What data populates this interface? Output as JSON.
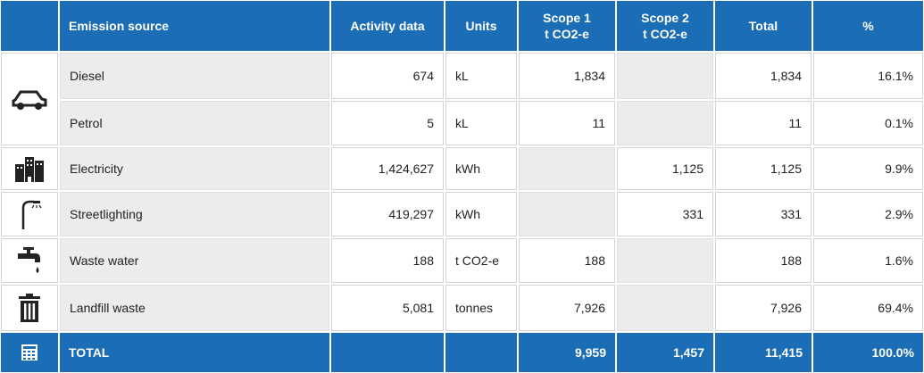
{
  "table": {
    "header": [
      null,
      [
        "Emission source"
      ],
      [
        "Activity data"
      ],
      [
        "Units"
      ],
      [
        "Scope 1",
        "t CO2-e"
      ],
      [
        "Scope 2",
        "t CO2-e"
      ],
      [
        "Total"
      ],
      [
        "%"
      ]
    ],
    "rows": [
      [
        "Diesel",
        "674",
        "kL",
        "1,834",
        null,
        "1,834",
        "16.1%"
      ],
      [
        "Petrol",
        "5",
        "kL",
        "11",
        null,
        "11",
        "0.1%"
      ],
      [
        "Electricity",
        "1,424,627",
        "kWh",
        null,
        "1,125",
        "1,125",
        "9.9%"
      ],
      [
        "Streetlighting",
        "419,297",
        "kWh",
        null,
        "331",
        "331",
        "2.9%"
      ],
      [
        "Waste water",
        "188",
        "t CO2-e",
        "188",
        null,
        "188",
        "1.6%"
      ],
      [
        "Landfill waste",
        "5,081",
        "tonnes",
        "7,926",
        null,
        "7,926",
        "69.4%"
      ]
    ],
    "total": [
      "TOTAL",
      null,
      null,
      "9,959",
      "1,457",
      "11,415",
      "100.0%"
    ]
  }
}
